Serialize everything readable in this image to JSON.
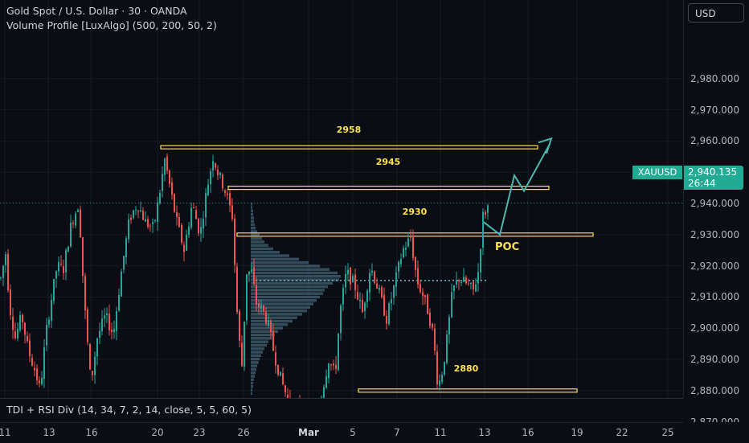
{
  "header": {
    "title": "Gold Spot / U.S. Dollar · 30 · OANDA",
    "indicator": "Volume Profile [LuxAlgo] (500, 200, 50, 2)"
  },
  "currency": "USD",
  "symbol": "XAUUSD",
  "last_price": "2,940.135",
  "countdown": "26:44",
  "price_axis": [
    "2,980.000",
    "2,970.000",
    "2,960.000",
    "2,950.000",
    "2,940.000",
    "2,930.000",
    "2,920.000",
    "2,910.000",
    "2,900.000",
    "2,890.000",
    "2,880.000",
    "2,870.000"
  ],
  "time_axis": [
    {
      "label": "11",
      "bold": false
    },
    {
      "label": "13",
      "bold": false
    },
    {
      "label": "16",
      "bold": false
    },
    {
      "label": "20",
      "bold": false
    },
    {
      "label": "23",
      "bold": false
    },
    {
      "label": "26",
      "bold": false
    },
    {
      "label": "Mar",
      "bold": true
    },
    {
      "label": "5",
      "bold": false
    },
    {
      "label": "7",
      "bold": false
    },
    {
      "label": "11",
      "bold": false
    },
    {
      "label": "13",
      "bold": false
    },
    {
      "label": "16",
      "bold": false
    },
    {
      "label": "19",
      "bold": false
    },
    {
      "label": "22",
      "bold": false
    },
    {
      "label": "25",
      "bold": false
    }
  ],
  "levels": {
    "l2958": "2958",
    "l2945": "2945",
    "l2930": "2930",
    "l2880": "2880",
    "poc": "POC"
  },
  "bottom_indicator": "TDI + RSI Div (14, 34, 7, 2, 14, close, 5, 5, 60, 5)",
  "colors": {
    "up": "#26a69a",
    "down": "#ef5350",
    "level": "#ffe24a",
    "projection": "#4db6ac",
    "price_tag": "#22ab94"
  },
  "chart_data": {
    "type": "candlestick",
    "ylim": [
      2867,
      2993
    ],
    "path": [
      [
        0,
        2916
      ],
      [
        6,
        2924
      ],
      [
        11,
        2907
      ],
      [
        18,
        2897
      ],
      [
        26,
        2904
      ],
      [
        34,
        2893
      ],
      [
        43,
        2886
      ],
      [
        49,
        2880
      ],
      [
        56,
        2898
      ],
      [
        62,
        2908
      ],
      [
        70,
        2920
      ],
      [
        78,
        2919
      ],
      [
        88,
        2934
      ],
      [
        97,
        2940
      ],
      [
        104,
        2908
      ],
      [
        112,
        2882
      ],
      [
        120,
        2897
      ],
      [
        130,
        2904
      ],
      [
        140,
        2898
      ],
      [
        150,
        2918
      ],
      [
        160,
        2935
      ],
      [
        170,
        2940
      ],
      [
        180,
        2934
      ],
      [
        190,
        2932
      ],
      [
        198,
        2944
      ],
      [
        204,
        2954
      ],
      [
        210,
        2946
      ],
      [
        218,
        2935
      ],
      [
        228,
        2925
      ],
      [
        238,
        2940
      ],
      [
        248,
        2930
      ],
      [
        256,
        2944
      ],
      [
        264,
        2955
      ],
      [
        270,
        2950
      ],
      [
        278,
        2945
      ],
      [
        288,
        2936
      ],
      [
        295,
        2900
      ],
      [
        300,
        2888
      ],
      [
        306,
        2918
      ],
      [
        312,
        2918
      ],
      [
        318,
        2908
      ],
      [
        325,
        2906
      ],
      [
        332,
        2902
      ],
      [
        340,
        2892
      ],
      [
        348,
        2884
      ],
      [
        356,
        2878
      ],
      [
        362,
        2870
      ],
      [
        368,
        2875
      ],
      [
        380,
        2868
      ],
      [
        392,
        2870
      ],
      [
        400,
        2880
      ],
      [
        408,
        2890
      ],
      [
        416,
        2885
      ],
      [
        422,
        2905
      ],
      [
        430,
        2918
      ],
      [
        440,
        2914
      ],
      [
        450,
        2905
      ],
      [
        460,
        2920
      ],
      [
        470,
        2912
      ],
      [
        480,
        2903
      ],
      [
        490,
        2914
      ],
      [
        500,
        2925
      ],
      [
        510,
        2929
      ],
      [
        518,
        2915
      ],
      [
        526,
        2910
      ],
      [
        532,
        2905
      ],
      [
        538,
        2898
      ],
      [
        544,
        2881
      ],
      [
        550,
        2887
      ],
      [
        556,
        2898
      ],
      [
        562,
        2912
      ],
      [
        570,
        2916
      ],
      [
        580,
        2914
      ],
      [
        588,
        2912
      ],
      [
        594,
        2918
      ],
      [
        600,
        2936
      ],
      [
        608,
        2940
      ]
    ],
    "volume_profile_scale": [
      2,
      2,
      3,
      3,
      4,
      4,
      5,
      6,
      8,
      11,
      14,
      17,
      22,
      28,
      36,
      48,
      60,
      72,
      86,
      98,
      108,
      112,
      110,
      102,
      96,
      92,
      90,
      86,
      82,
      78,
      74,
      70,
      64,
      58,
      52,
      46,
      40,
      34,
      30,
      26,
      22,
      20,
      17,
      15,
      13,
      11,
      10,
      8,
      7,
      6,
      5,
      4,
      3,
      3,
      2,
      2
    ]
  }
}
